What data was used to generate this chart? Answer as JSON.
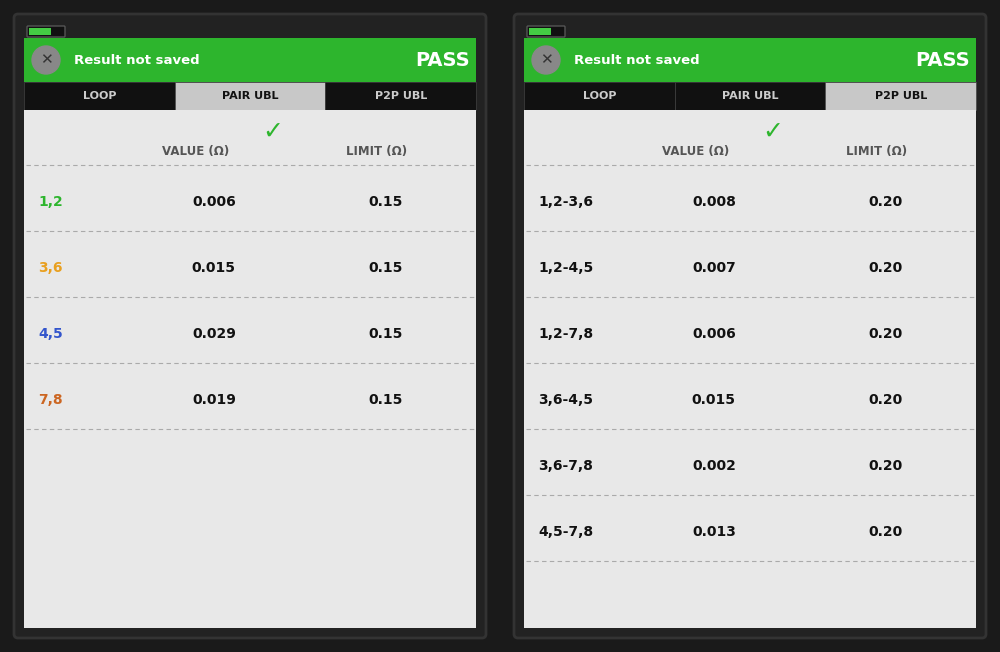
{
  "fig_width": 10.0,
  "fig_height": 6.52,
  "bg_outer": "#1a1a1a",
  "bg_device": "#1a1a1a",
  "bg_green_header": "#2db52d",
  "bg_tab_bar": "#111111",
  "bg_content": "#e8e8e8",
  "bg_battery": "#111111",
  "tab_active_bg": "#c8c8c8",
  "tab_inactive_bg": "#111111",
  "tab_active_color": "#ffffff",
  "tab_inactive_color": "#cccccc",
  "pass_color": "#ffffff",
  "result_text_color": "#ffffff",
  "header_text": "Result not saved",
  "pass_text": "PASS",
  "tabs": [
    "LOOP",
    "PAIR UBL",
    "P2P UBL"
  ],
  "checkmark_color": "#2db52d",
  "col_header_color": "#555555",
  "dashed_line_color": "#aaaaaa",
  "left_panel": {
    "active_tab": 1,
    "col_headers": [
      "VALUE (Ω)",
      "LIMIT (Ω)"
    ],
    "rows": [
      {
        "label": "1,2",
        "label_color": "#2db52d",
        "value": "0.006",
        "limit": "0.15"
      },
      {
        "label": "3,6",
        "label_color": "#e8a020",
        "value": "0.015",
        "limit": "0.15"
      },
      {
        "label": "4,5",
        "label_color": "#3355cc",
        "value": "0.029",
        "limit": "0.15"
      },
      {
        "label": "7,8",
        "label_color": "#cc6622",
        "value": "0.019",
        "limit": "0.15"
      }
    ]
  },
  "right_panel": {
    "active_tab": 2,
    "col_headers": [
      "VALUE (Ω)",
      "LIMIT (Ω)"
    ],
    "rows": [
      {
        "label": "1,2-3,6",
        "label_color": "#111111",
        "value": "0.008",
        "limit": "0.20"
      },
      {
        "label": "1,2-4,5",
        "label_color": "#111111",
        "value": "0.007",
        "limit": "0.20"
      },
      {
        "label": "1,2-7,8",
        "label_color": "#111111",
        "value": "0.006",
        "limit": "0.20"
      },
      {
        "label": "3,6-4,5",
        "label_color": "#111111",
        "value": "0.015",
        "limit": "0.20"
      },
      {
        "label": "3,6-7,8",
        "label_color": "#111111",
        "value": "0.002",
        "limit": "0.20"
      },
      {
        "label": "4,5-7,8",
        "label_color": "#111111",
        "value": "0.013",
        "limit": "0.20"
      }
    ]
  }
}
